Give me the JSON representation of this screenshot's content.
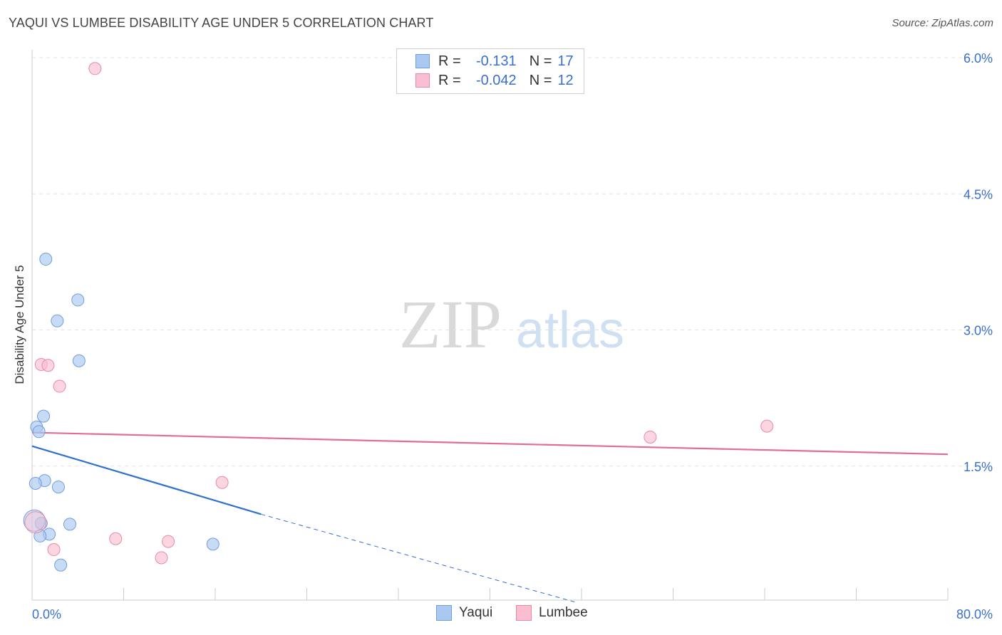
{
  "title": "YAQUI VS LUMBEE DISABILITY AGE UNDER 5 CORRELATION CHART",
  "source": "Source: ZipAtlas.com",
  "watermark": {
    "zip": "ZIP",
    "atlas": "atlas"
  },
  "legend": {
    "rows": [
      {
        "r_label": "R =",
        "r_value": "-0.131",
        "n_label": "N =",
        "n_value": "17",
        "color": "#aac8f0",
        "border": "#6f9ee0"
      },
      {
        "r_label": "R =",
        "r_value": "-0.042",
        "n_label": "N =",
        "n_value": "12",
        "color": "#f9bfd0",
        "border": "#e88aa6"
      }
    ]
  },
  "chart_data": {
    "type": "scatter",
    "title": "YAQUI VS LUMBEE DISABILITY AGE UNDER 5 CORRELATION CHART",
    "xlabel": "",
    "ylabel": "Disability Age Under 5",
    "xlim": [
      0,
      80
    ],
    "ylim": [
      0,
      6.2
    ],
    "x_tick_labels": [
      "0.0%",
      "80.0%"
    ],
    "y_ticks": [
      1.5,
      3.0,
      4.5,
      6.0
    ],
    "y_tick_labels": [
      "1.5%",
      "3.0%",
      "4.5%",
      "6.0%"
    ],
    "grid": true,
    "legend_position": "bottom-center",
    "series": [
      {
        "name": "Yaqui",
        "color": "#aac8f0",
        "edge": "#6f9ee0",
        "points": [
          {
            "x": 1.2,
            "y": 3.78
          },
          {
            "x": 4.0,
            "y": 3.33
          },
          {
            "x": 2.2,
            "y": 3.1
          },
          {
            "x": 4.1,
            "y": 2.66
          },
          {
            "x": 1.0,
            "y": 2.05
          },
          {
            "x": 0.4,
            "y": 1.93
          },
          {
            "x": 0.6,
            "y": 1.88
          },
          {
            "x": 1.1,
            "y": 1.34
          },
          {
            "x": 0.3,
            "y": 1.31
          },
          {
            "x": 2.3,
            "y": 1.27
          },
          {
            "x": 3.3,
            "y": 0.86
          },
          {
            "x": 0.8,
            "y": 0.87
          },
          {
            "x": 1.5,
            "y": 0.75
          },
          {
            "x": 0.7,
            "y": 0.73
          },
          {
            "x": 15.8,
            "y": 0.64
          },
          {
            "x": 2.5,
            "y": 0.41
          },
          {
            "x": 0.2,
            "y": 0.9
          }
        ],
        "trend": {
          "x0": 0,
          "y0": 1.72,
          "x1": 20.0,
          "y1": 0.97,
          "x_end": 47.5,
          "y_end": 0.0
        }
      },
      {
        "name": "Lumbee",
        "color": "#f9bfd0",
        "edge": "#e88aa6",
        "points": [
          {
            "x": 5.5,
            "y": 5.88
          },
          {
            "x": 0.8,
            "y": 2.62
          },
          {
            "x": 1.4,
            "y": 2.61
          },
          {
            "x": 2.4,
            "y": 2.38
          },
          {
            "x": 54.0,
            "y": 1.82
          },
          {
            "x": 64.2,
            "y": 1.94
          },
          {
            "x": 16.6,
            "y": 1.32
          },
          {
            "x": 7.3,
            "y": 0.7
          },
          {
            "x": 11.9,
            "y": 0.67
          },
          {
            "x": 1.9,
            "y": 0.58
          },
          {
            "x": 11.3,
            "y": 0.49
          },
          {
            "x": 0.3,
            "y": 0.88
          }
        ],
        "trend": {
          "x0": 0,
          "y0": 1.87,
          "x1": 80,
          "y1": 1.63
        }
      }
    ]
  }
}
